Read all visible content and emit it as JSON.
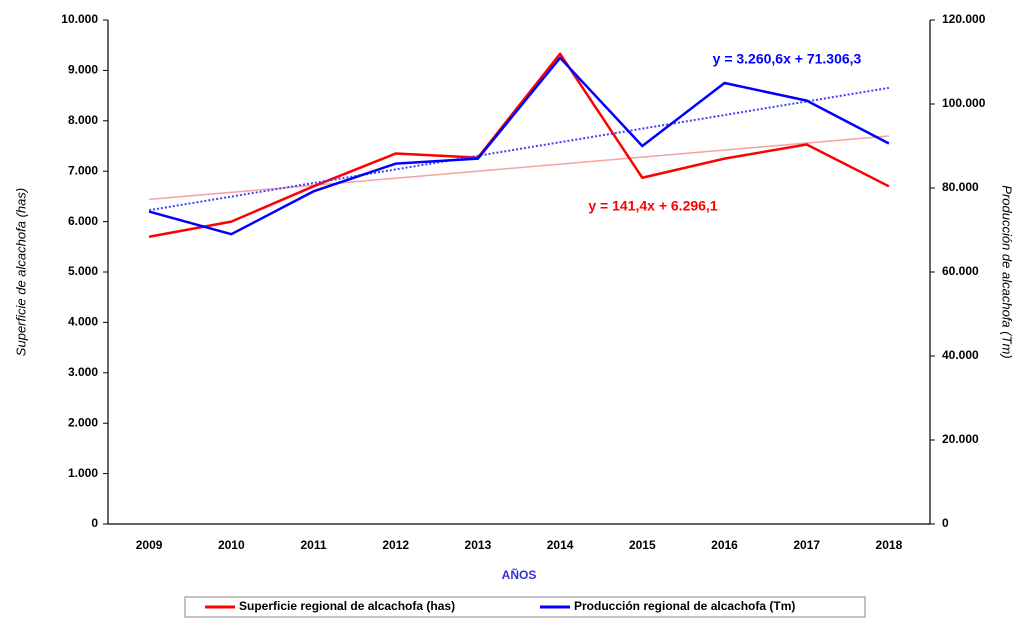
{
  "chart_data": {
    "type": "line",
    "categories": [
      "2009",
      "2010",
      "2011",
      "2012",
      "2013",
      "2014",
      "2015",
      "2016",
      "2017",
      "2018"
    ],
    "x_label": "AÑOS",
    "y_label": "Superficie de alcachofa (has)",
    "y2_label": "Producción de alcachofa (Tm)",
    "series": [
      {
        "name": "Superficie regional de alcachofa (has)",
        "color": "#ff0000",
        "trend_color": "#f5a3a3",
        "values": [
          5700,
          6000,
          6700,
          7350,
          7270,
          9330,
          6870,
          7250,
          7530,
          6700
        ]
      },
      {
        "name": "Producción regional de alcachofa (Tm)",
        "color": "#0000ff",
        "trend_color": "#4040ff",
        "axis": "y2",
        "values": [
          74400,
          69000,
          79200,
          85800,
          87000,
          111000,
          90000,
          105000,
          100800,
          90600
        ]
      }
    ],
    "annotations": [
      {
        "text": "y = 141,4x + 6.296,1",
        "color": "#ff0000"
      },
      {
        "text": "y = 3.260,6x + 71.306,3",
        "color": "#0000ff"
      }
    ],
    "trendline": true,
    "ylim": [
      0,
      10000
    ],
    "yticks": [
      0,
      {
        "value": 1000,
        "label": "1.000"
      },
      {
        "value": 2000,
        "label": "2.000"
      },
      {
        "value": 3000,
        "label": "3.000"
      },
      {
        "value": 4000,
        "label": "4.000"
      },
      {
        "value": 5000,
        "label": "5.000"
      },
      {
        "value": 6000,
        "label": "6.000"
      },
      {
        "value": 7000,
        "label": "7.000"
      },
      {
        "value": 8000,
        "label": "8.000"
      },
      {
        "value": 9000,
        "label": "9.000"
      },
      {
        "value": 10000,
        "label": "10.000"
      }
    ],
    "y2lim": [
      0,
      120000
    ],
    "y2ticks": [
      0,
      {
        "value": 20000,
        "label": "20.000"
      },
      {
        "value": 40000,
        "label": "40.000"
      },
      {
        "value": 60000,
        "label": "60.000"
      },
      {
        "value": 80000,
        "label": "80.000"
      },
      {
        "value": 100000,
        "label": "100.000"
      },
      {
        "value": 120000,
        "label": "120.000"
      }
    ],
    "legend": "bottom"
  }
}
